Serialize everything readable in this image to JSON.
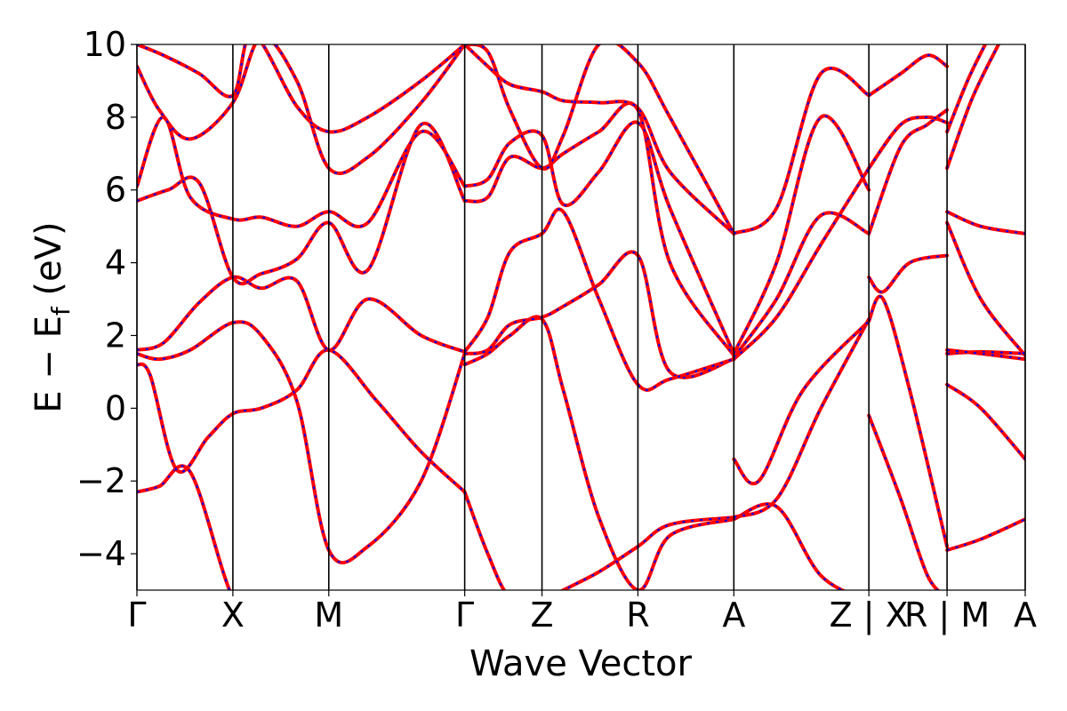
{
  "chart_data": {
    "type": "line",
    "title": "",
    "xlabel": "Wave Vector",
    "ylabel_main": "E − E",
    "ylabel_sub": "f",
    "ylabel_unit": " (eV)",
    "ylim": [
      -5,
      10
    ],
    "xlim": [
      0,
      10.0
    ],
    "grid": false,
    "legend": "none",
    "y_ticks": [
      {
        "value": -4,
        "label": "−4"
      },
      {
        "value": -2,
        "label": "−2"
      },
      {
        "value": 0,
        "label": "0"
      },
      {
        "value": 2,
        "label": "2"
      },
      {
        "value": 4,
        "label": "4"
      },
      {
        "value": 6,
        "label": "6"
      },
      {
        "value": 8,
        "label": "8"
      },
      {
        "value": 10,
        "label": "10"
      }
    ],
    "x_ticks": [
      {
        "value": 0.0,
        "label": "Γ"
      },
      {
        "value": 1.08,
        "label": "X"
      },
      {
        "value": 2.16,
        "label": "M"
      },
      {
        "value": 3.69,
        "label": "Γ"
      },
      {
        "value": 4.56,
        "label": "Z"
      },
      {
        "value": 5.64,
        "label": "R"
      },
      {
        "value": 6.72,
        "label": "A"
      },
      {
        "value": 8.24,
        "label": "Z | X"
      },
      {
        "value": 9.12,
        "label": "R | M"
      },
      {
        "value": 10.0,
        "label": "A"
      }
    ],
    "segment_boundaries": [
      0.0,
      1.08,
      2.16,
      3.69,
      4.56,
      5.64,
      6.72,
      8.24,
      9.12,
      10.0
    ],
    "band_color_primary": "#ff0000",
    "band_color_overlay": "#0000ff",
    "bands": [
      {
        "x": [
          0.0,
          0.25,
          0.6,
          1.08,
          1.4,
          2.16,
          2.6,
          3.2,
          3.69
        ],
        "y": [
          -2.3,
          -2.15,
          -1.75,
          -5.2,
          -5.3,
          -5.3,
          -5.3,
          -5.3,
          -5.3
        ]
      },
      {
        "x": [
          0.0,
          0.15,
          0.45,
          0.8,
          1.08,
          1.4,
          1.8,
          2.16,
          2.7,
          3.2,
          3.69
        ],
        "y": [
          1.2,
          0.9,
          -1.7,
          -0.8,
          -0.15,
          0.0,
          0.5,
          1.6,
          0.2,
          -1.2,
          -2.3
        ]
      },
      {
        "x": [
          0.0,
          0.25,
          0.6,
          1.08,
          1.4,
          1.8,
          2.16,
          2.6,
          3.2,
          3.69
        ],
        "y": [
          1.5,
          1.35,
          1.6,
          2.35,
          2.0,
          0.2,
          -3.9,
          -3.8,
          -2.0,
          1.5
        ]
      },
      {
        "x": [
          0.0,
          0.3,
          0.7,
          1.08,
          1.4,
          1.8,
          2.16,
          2.6,
          3.2,
          3.69
        ],
        "y": [
          1.6,
          1.8,
          2.9,
          3.6,
          3.3,
          3.5,
          1.6,
          3.0,
          2.0,
          1.55
        ]
      },
      {
        "x": [
          0.0,
          0.35,
          0.7,
          1.08,
          1.4,
          1.8,
          2.16,
          2.6,
          3.2,
          3.69
        ],
        "y": [
          5.7,
          6.0,
          6.2,
          3.6,
          3.7,
          4.1,
          5.1,
          3.8,
          7.8,
          5.7
        ]
      },
      {
        "x": [
          0.0,
          0.3,
          0.6,
          1.08,
          1.4,
          1.8,
          2.16,
          2.6,
          3.2,
          3.69
        ],
        "y": [
          6.1,
          8.0,
          5.8,
          5.2,
          5.25,
          5.0,
          5.4,
          5.1,
          7.6,
          6.1
        ]
      },
      {
        "x": [
          0.0,
          0.25,
          0.6,
          1.08,
          1.4,
          1.8,
          2.16,
          2.6,
          3.2,
          3.69
        ],
        "y": [
          9.4,
          8.2,
          7.4,
          8.4,
          10.2,
          9.0,
          6.6,
          6.9,
          8.4,
          10.0
        ]
      },
      {
        "x": [
          0.0,
          0.3,
          0.7,
          1.08,
          1.3,
          1.8,
          2.16,
          2.6,
          3.2,
          3.69
        ],
        "y": [
          10.0,
          9.7,
          9.2,
          8.6,
          10.3,
          8.3,
          7.6,
          8.0,
          9.0,
          10.0
        ]
      },
      {
        "x": [
          3.69,
          3.95,
          4.2,
          4.56,
          4.8,
          5.2,
          5.64,
          6.0,
          6.72
        ],
        "y": [
          -2.3,
          -4.0,
          -5.2,
          -5.3,
          -5.0,
          -4.5,
          -3.8,
          -3.2,
          -3.0
        ]
      },
      {
        "x": [
          3.69,
          3.95,
          4.2,
          4.56,
          4.8,
          5.2,
          5.64,
          6.0,
          6.72
        ],
        "y": [
          1.2,
          1.5,
          2.0,
          2.45,
          0.5,
          -3.0,
          -5.0,
          -3.5,
          -3.05
        ]
      },
      {
        "x": [
          3.69,
          3.95,
          4.2,
          4.56,
          4.8,
          5.2,
          5.64,
          6.0,
          6.72
        ],
        "y": [
          1.5,
          1.6,
          2.3,
          2.5,
          2.8,
          3.4,
          4.2,
          1.0,
          1.35
        ]
      },
      {
        "x": [
          3.69,
          3.95,
          4.2,
          4.56,
          4.8,
          5.2,
          5.64,
          6.0,
          6.72
        ],
        "y": [
          1.55,
          2.5,
          4.3,
          4.8,
          5.4,
          3.0,
          0.65,
          0.8,
          1.35
        ]
      },
      {
        "x": [
          3.69,
          3.95,
          4.2,
          4.56,
          4.8,
          5.2,
          5.64,
          6.0,
          6.72
        ],
        "y": [
          5.7,
          5.8,
          6.9,
          6.6,
          7.0,
          7.6,
          8.2,
          4.0,
          1.45
        ]
      },
      {
        "x": [
          3.69,
          3.95,
          4.2,
          4.56,
          4.8,
          5.2,
          5.64,
          6.0,
          6.72
        ],
        "y": [
          6.1,
          6.3,
          7.3,
          7.5,
          5.6,
          6.5,
          7.85,
          5.5,
          1.5
        ]
      },
      {
        "x": [
          3.69,
          3.95,
          4.2,
          4.56,
          4.8,
          5.2,
          5.64,
          6.0,
          6.72
        ],
        "y": [
          10.0,
          9.4,
          8.9,
          8.7,
          8.45,
          8.4,
          8.25,
          6.5,
          4.8
        ]
      },
      {
        "x": [
          3.69,
          3.95,
          4.2,
          4.56,
          4.8,
          5.2,
          5.64,
          6.0,
          6.72
        ],
        "y": [
          10.0,
          9.8,
          8.2,
          6.6,
          7.5,
          10.0,
          9.5,
          8.0,
          4.8
        ]
      },
      {
        "x": [
          6.72,
          7.2,
          7.7,
          8.24
        ],
        "y": [
          -3.05,
          -2.7,
          -4.6,
          -5.3
        ]
      },
      {
        "x": [
          6.72,
          7.2,
          7.7,
          8.24
        ],
        "y": [
          -3.0,
          -2.5,
          0.0,
          2.45
        ]
      },
      {
        "x": [
          6.72,
          7.0,
          7.5,
          8.24
        ],
        "y": [
          -1.4,
          -2.0,
          0.5,
          2.4
        ]
      },
      {
        "x": [
          6.72,
          7.2,
          7.7,
          8.24
        ],
        "y": [
          1.35,
          2.5,
          4.5,
          6.6
        ]
      },
      {
        "x": [
          6.72,
          7.2,
          7.7,
          8.24
        ],
        "y": [
          1.4,
          3.0,
          5.3,
          4.8
        ]
      },
      {
        "x": [
          6.72,
          7.2,
          7.7,
          8.24
        ],
        "y": [
          1.5,
          4.0,
          8.0,
          6.0
        ]
      },
      {
        "x": [
          6.72,
          7.2,
          7.7,
          8.24
        ],
        "y": [
          4.8,
          5.5,
          9.2,
          8.6
        ]
      },
      {
        "x": [
          8.24,
          8.6,
          8.9,
          9.12
        ],
        "y": [
          -0.2,
          -2.5,
          -4.6,
          -5.2
        ]
      },
      {
        "x": [
          8.24,
          8.4,
          8.7,
          9.12
        ],
        "y": [
          2.4,
          3.0,
          0.5,
          -3.8
        ]
      },
      {
        "x": [
          8.24,
          8.4,
          8.7,
          9.12
        ],
        "y": [
          3.6,
          3.2,
          4.0,
          4.2
        ]
      },
      {
        "x": [
          8.24,
          8.6,
          8.9,
          9.12
        ],
        "y": [
          4.8,
          7.2,
          7.8,
          8.2
        ]
      },
      {
        "x": [
          8.24,
          8.6,
          8.9,
          9.12
        ],
        "y": [
          6.6,
          7.8,
          8.0,
          7.85
        ]
      },
      {
        "x": [
          8.24,
          8.6,
          8.9,
          9.12
        ],
        "y": [
          8.6,
          9.2,
          9.7,
          9.4
        ]
      },
      {
        "x": [
          9.12,
          9.5,
          10.0
        ],
        "y": [
          -3.9,
          -3.6,
          -3.05
        ]
      },
      {
        "x": [
          9.12,
          9.5,
          10.0
        ],
        "y": [
          0.65,
          0.0,
          -1.4
        ]
      },
      {
        "x": [
          9.12,
          9.5,
          10.0
        ],
        "y": [
          1.5,
          1.55,
          1.5
        ]
      },
      {
        "x": [
          9.12,
          9.5,
          10.0
        ],
        "y": [
          1.6,
          1.5,
          1.35
        ]
      },
      {
        "x": [
          9.12,
          9.5,
          10.0
        ],
        "y": [
          5.1,
          3.0,
          1.45
        ]
      },
      {
        "x": [
          9.12,
          9.5,
          10.0
        ],
        "y": [
          5.4,
          5.0,
          4.8
        ]
      },
      {
        "x": [
          9.12,
          9.4,
          9.7
        ],
        "y": [
          6.6,
          8.5,
          10.0
        ]
      },
      {
        "x": [
          9.12,
          9.35,
          9.55
        ],
        "y": [
          7.6,
          9.0,
          10.0
        ]
      }
    ]
  }
}
